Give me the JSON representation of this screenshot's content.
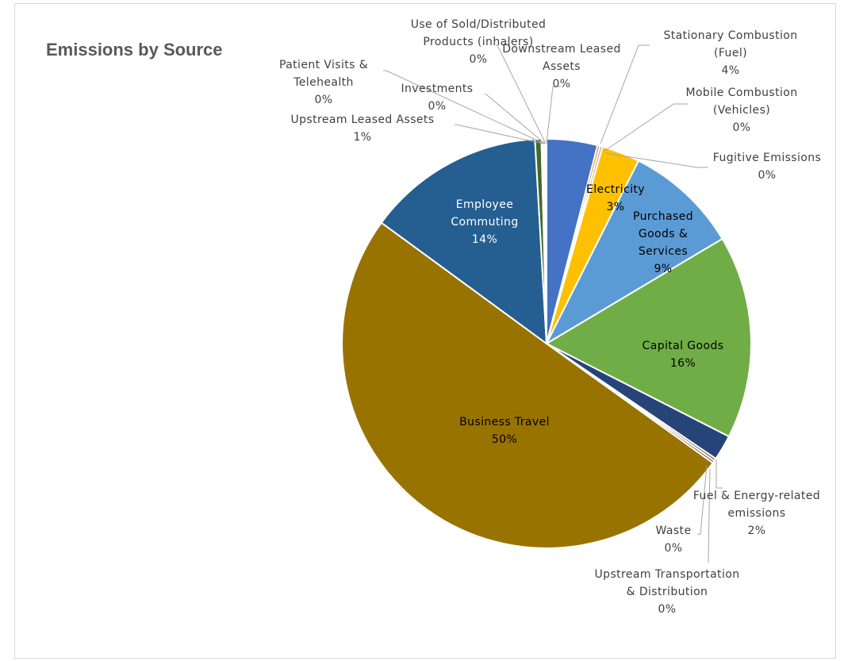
{
  "chart_data": {
    "type": "pie",
    "title": "Emissions by Source",
    "slices": [
      {
        "label": [
          "Stationary Combustion",
          "(Fuel)"
        ],
        "value": 4,
        "pct": "4%",
        "color": "#4472c4"
      },
      {
        "label": [
          "Mobile Combustion",
          "(Vehicles)"
        ],
        "value": 0.2,
        "pct": "0%",
        "color": "#ed7d31"
      },
      {
        "label": [
          "Fugitive Emissions"
        ],
        "value": 0.2,
        "pct": "0%",
        "color": "#a5a5a5"
      },
      {
        "label": [
          "Electricity"
        ],
        "value": 3,
        "pct": "3%",
        "color": "#ffc000"
      },
      {
        "label": [
          "Purchased",
          "Goods &",
          "Services"
        ],
        "value": 9,
        "pct": "9%",
        "color": "#5b9bd5"
      },
      {
        "label": [
          "Capital Goods"
        ],
        "value": 16,
        "pct": "16%",
        "color": "#70ad47"
      },
      {
        "label": [
          "Fuel & Energy-related",
          "emissions"
        ],
        "value": 2,
        "pct": "2%",
        "color": "#264478"
      },
      {
        "label": [
          "Upstream Transportation",
          "& Distribution"
        ],
        "value": 0.2,
        "pct": "0%",
        "color": "#9e480e"
      },
      {
        "label": [
          "Waste"
        ],
        "value": 0.2,
        "pct": "0%",
        "color": "#636363"
      },
      {
        "label": [
          "Business Travel"
        ],
        "value": 50,
        "pct": "50%",
        "color": "#997300"
      },
      {
        "label": [
          "Employee",
          "Commuting"
        ],
        "value": 14,
        "pct": "14%",
        "color": "#255e91"
      },
      {
        "label": [
          "Upstream Leased Assets"
        ],
        "value": 0.5,
        "pct": "1%",
        "color": "#43682b"
      },
      {
        "label": [
          "Patient Visits &",
          "Telehealth"
        ],
        "value": 0.1,
        "pct": "0%",
        "color": "#698ed0"
      },
      {
        "label": [
          "Investments"
        ],
        "value": 0.1,
        "pct": "0%",
        "color": "#f1975a"
      },
      {
        "label": [
          "Use of Sold/Distributed",
          "Products (inhalers)"
        ],
        "value": 0.1,
        "pct": "0%",
        "color": "#b7b7b7"
      },
      {
        "label": [
          "Downstream Leased",
          "Assets"
        ],
        "value": 0.1,
        "pct": "0%",
        "color": "#ffcd33"
      }
    ]
  }
}
